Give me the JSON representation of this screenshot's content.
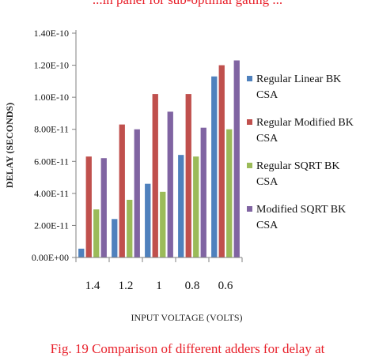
{
  "caption_top": "...in panel for sub-optimal gating ...",
  "caption_bottom": "Fig. 19 Comparison of different adders for delay at",
  "chart_data": {
    "type": "bar",
    "title": "",
    "xlabel": "INPUT VOLTAGE (VOLTS)",
    "ylabel": "DELAY (SECONDS)",
    "ylim": [
      0,
      1.4e-10
    ],
    "yticks": [
      0,
      2e-11,
      4e-11,
      6e-11,
      8e-11,
      1e-10,
      1.2e-10,
      1.4e-10
    ],
    "ytick_labels": [
      "0.00E+00",
      "2.00E-11",
      "4.00E-11",
      "6.00E-11",
      "8.00E-11",
      "1.00E-10",
      "1.20E-10",
      "1.40E-10"
    ],
    "categories": [
      "1.4",
      "1.2",
      "1",
      "0.8",
      "0.6"
    ],
    "grid": false,
    "legend_position": "right",
    "series": [
      {
        "name": "Regular Linear BK CSA",
        "legend_lines": [
          "Regular Linear BK",
          "CSA"
        ],
        "color": "#4f81bd",
        "values": [
          5.5e-12,
          2.4e-11,
          4.6e-11,
          6.4e-11,
          1.13e-10
        ]
      },
      {
        "name": "Regular Modified BK CSA",
        "legend_lines": [
          "Regular Modified BK",
          "CSA"
        ],
        "color": "#c0504d",
        "values": [
          6.3e-11,
          8.3e-11,
          1.02e-10,
          1.02e-10,
          1.2e-10
        ]
      },
      {
        "name": "Regular SQRT BK CSA",
        "legend_lines": [
          "Regular SQRT BK",
          "CSA"
        ],
        "color": "#9bbb59",
        "values": [
          3e-11,
          3.6e-11,
          4.1e-11,
          6.3e-11,
          8e-11
        ]
      },
      {
        "name": "Modified SQRT BK CSA",
        "legend_lines": [
          "Modified SQRT BK",
          "CSA"
        ],
        "color": "#8064a2",
        "values": [
          6.2e-11,
          8e-11,
          9.1e-11,
          8.1e-11,
          1.23e-10
        ]
      }
    ]
  }
}
